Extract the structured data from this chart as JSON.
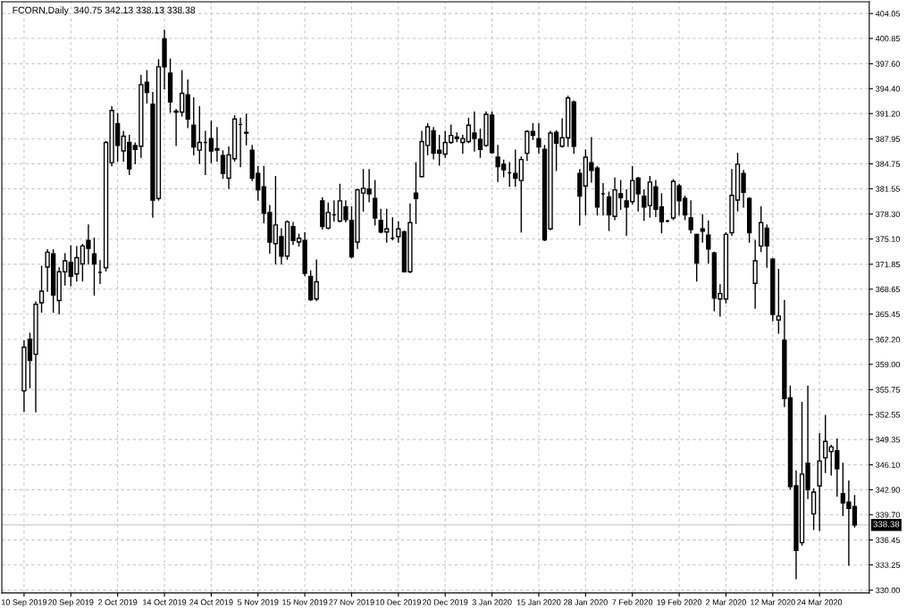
{
  "chart_data": {
    "type": "candlestick",
    "title": "FCORN,Daily  340.75 342.13 338.13 338.38",
    "categories": [
      "10 Sep 2019",
      null,
      null,
      null,
      null,
      null,
      null,
      null,
      "20 Sep 2019",
      null,
      null,
      null,
      null,
      null,
      null,
      null,
      "2 Oct 2019",
      null,
      null,
      null,
      null,
      null,
      null,
      null,
      "14 Oct 2019",
      null,
      null,
      null,
      null,
      null,
      null,
      null,
      "24 Oct 2019",
      null,
      null,
      null,
      null,
      null,
      null,
      null,
      "5 Nov 2019",
      null,
      null,
      null,
      null,
      null,
      null,
      null,
      "15 Nov 2019",
      null,
      null,
      null,
      null,
      null,
      null,
      null,
      "27 Nov 2019",
      null,
      null,
      null,
      null,
      null,
      null,
      null,
      "10 Dec 2019",
      null,
      null,
      null,
      null,
      null,
      null,
      null,
      "20 Dec 2019",
      null,
      null,
      null,
      null,
      null,
      null,
      null,
      "3 Jan 2020",
      null,
      null,
      null,
      null,
      null,
      null,
      null,
      "15 Jan 2020",
      null,
      null,
      null,
      null,
      null,
      null,
      null,
      "28 Jan 2020",
      null,
      null,
      null,
      null,
      null,
      null,
      null,
      "7 Feb 2020",
      null,
      null,
      null,
      null,
      null,
      null,
      null,
      "19 Feb 2020",
      null,
      null,
      null,
      null,
      null,
      null,
      null,
      "2 Mar 2020",
      null,
      null,
      null,
      null,
      null,
      null,
      null,
      "12 Mar 2020",
      null,
      null,
      null,
      null,
      null,
      null,
      null,
      "24 Mar 2020",
      null,
      null,
      null,
      null,
      null,
      null
    ],
    "ohlc": [
      [
        355.6,
        362.0,
        353.0,
        361.2
      ],
      [
        362.2,
        363.0,
        356.0,
        359.5
      ],
      [
        360.3,
        367.0,
        352.9,
        366.7
      ],
      [
        366.9,
        371.6,
        365.7,
        368.4
      ],
      [
        371.5,
        373.7,
        368.4,
        373.4
      ],
      [
        373.2,
        373.7,
        365.7,
        367.9
      ],
      [
        367.2,
        371.4,
        365.5,
        370.9
      ],
      [
        370.9,
        373.2,
        369.2,
        372.3
      ],
      [
        372.1,
        374.2,
        369.1,
        370.3
      ],
      [
        370.6,
        374.1,
        369.7,
        372.7
      ],
      [
        371.9,
        374.4,
        369.7,
        374.2
      ],
      [
        374.9,
        376.9,
        371.9,
        373.9
      ],
      [
        373.2,
        375.2,
        367.9,
        371.9
      ],
      [
        370.8,
        372.3,
        369.4,
        370.8
      ],
      [
        371.4,
        387.6,
        371.0,
        387.5
      ],
      [
        384.9,
        392.1,
        384.5,
        391.6
      ],
      [
        389.9,
        391.2,
        385.1,
        387.1
      ],
      [
        386.4,
        388.9,
        385.1,
        388.3
      ],
      [
        387.5,
        388.4,
        383.4,
        384.1
      ],
      [
        387.1,
        387.4,
        384.8,
        386.6
      ],
      [
        387.0,
        396.1,
        385.6,
        394.9
      ],
      [
        395.2,
        396.7,
        392.6,
        393.9
      ],
      [
        392.4,
        393.9,
        377.9,
        380.1
      ],
      [
        380.3,
        398.1,
        380.1,
        397.2
      ],
      [
        400.8,
        401.9,
        394.4,
        397.2
      ],
      [
        396.4,
        398.2,
        391.4,
        392.7
      ],
      [
        391.4,
        391.7,
        387.1,
        391.5
      ],
      [
        391.4,
        396.7,
        390.9,
        393.8
      ],
      [
        393.6,
        395.5,
        389.4,
        390.5
      ],
      [
        389.7,
        393.2,
        385.9,
        386.9
      ],
      [
        386.5,
        392.1,
        384.8,
        387.5
      ],
      [
        387.5,
        388.9,
        383.4,
        387.5
      ],
      [
        388.0,
        390.2,
        384.9,
        386.4
      ],
      [
        386.7,
        389.4,
        385.1,
        386.5
      ],
      [
        385.8,
        386.4,
        382.9,
        383.5
      ],
      [
        382.9,
        386.9,
        381.6,
        385.9
      ],
      [
        385.4,
        390.9,
        385.1,
        390.5
      ],
      [
        389.8,
        390.6,
        384.4,
        389.8
      ],
      [
        388.8,
        391.1,
        387.2,
        388.7
      ],
      [
        386.5,
        387.1,
        382.6,
        382.9
      ],
      [
        383.5,
        384.4,
        380.1,
        381.4
      ],
      [
        381.8,
        384.4,
        377.2,
        378.4
      ],
      [
        378.5,
        379.4,
        373.3,
        374.7
      ],
      [
        374.5,
        383.1,
        371.9,
        376.9
      ],
      [
        375.4,
        376.4,
        371.9,
        372.9
      ],
      [
        372.9,
        377.4,
        372.5,
        377.3
      ],
      [
        376.7,
        377.2,
        374.4,
        374.9
      ],
      [
        374.7,
        375.7,
        374.2,
        375.2
      ],
      [
        374.9,
        375.9,
        370.4,
        370.7
      ],
      [
        370.3,
        371.0,
        367.2,
        367.3
      ],
      [
        367.4,
        372.4,
        367.2,
        369.6
      ],
      [
        380.0,
        380.4,
        376.4,
        376.7
      ],
      [
        376.5,
        379.7,
        376.4,
        378.5
      ],
      [
        378.2,
        380.0,
        377.4,
        378.2
      ],
      [
        377.4,
        382.1,
        377.3,
        380.0
      ],
      [
        379.2,
        380.0,
        377.3,
        377.6
      ],
      [
        377.5,
        379.2,
        372.7,
        372.8
      ],
      [
        374.7,
        381.5,
        373.9,
        381.4
      ],
      [
        381.0,
        384.0,
        378.7,
        381.6
      ],
      [
        381.5,
        384.0,
        379.9,
        380.9
      ],
      [
        380.3,
        382.6,
        376.9,
        377.8
      ],
      [
        377.5,
        378.9,
        375.9,
        376.0
      ],
      [
        376.0,
        378.9,
        374.7,
        376.4
      ],
      [
        375.2,
        377.8,
        375.0,
        375.2
      ],
      [
        375.4,
        377.3,
        374.7,
        376.4
      ],
      [
        376.0,
        376.1,
        370.9,
        370.9
      ],
      [
        370.9,
        379.6,
        370.8,
        377.2
      ],
      [
        381.0,
        384.9,
        377.1,
        380.3
      ],
      [
        383.1,
        388.9,
        383.1,
        387.6
      ],
      [
        387.1,
        389.9,
        385.9,
        389.5
      ],
      [
        389.0,
        389.4,
        385.4,
        386.1
      ],
      [
        386.5,
        388.4,
        384.6,
        386.1
      ],
      [
        386.0,
        388.9,
        385.6,
        387.5
      ],
      [
        387.5,
        389.7,
        387.4,
        388.4
      ],
      [
        388.2,
        388.7,
        387.6,
        388.0
      ],
      [
        387.5,
        388.4,
        386.1,
        388.0
      ],
      [
        387.6,
        390.6,
        387.5,
        389.7
      ],
      [
        388.7,
        391.4,
        386.4,
        388.0
      ],
      [
        387.9,
        389.2,
        385.6,
        386.6
      ],
      [
        387.1,
        391.4,
        387.0,
        391.1
      ],
      [
        391.0,
        391.4,
        386.1,
        386.2
      ],
      [
        385.6,
        387.1,
        382.5,
        384.4
      ],
      [
        384.7,
        385.2,
        383.1,
        384.0
      ],
      [
        383.6,
        384.9,
        381.9,
        383.6
      ],
      [
        383.5,
        386.5,
        381.9,
        382.9
      ],
      [
        382.6,
        385.6,
        376.0,
        385.3
      ],
      [
        386.1,
        389.0,
        385.2,
        388.9
      ],
      [
        388.9,
        389.9,
        387.9,
        388.4
      ],
      [
        388.0,
        389.9,
        386.1,
        386.9
      ],
      [
        386.6,
        387.1,
        374.9,
        375.0
      ],
      [
        376.4,
        388.9,
        376.3,
        388.7
      ],
      [
        388.8,
        389.0,
        383.9,
        387.4
      ],
      [
        387.0,
        390.5,
        386.9,
        388.1
      ],
      [
        388.1,
        393.4,
        387.0,
        393.2
      ],
      [
        392.7,
        392.8,
        386.1,
        387.0
      ],
      [
        383.5,
        384.0,
        376.9,
        380.6
      ],
      [
        381.9,
        386.5,
        378.2,
        385.6
      ],
      [
        384.9,
        388.1,
        382.4,
        383.9
      ],
      [
        384.2,
        384.4,
        378.2,
        379.2
      ],
      [
        380.9,
        382.2,
        378.2,
        380.9
      ],
      [
        380.5,
        381.1,
        376.2,
        378.2
      ],
      [
        378.0,
        382.9,
        377.6,
        381.4
      ],
      [
        380.9,
        382.6,
        378.9,
        380.4
      ],
      [
        380.0,
        381.4,
        375.6,
        379.2
      ],
      [
        379.9,
        384.4,
        379.6,
        382.6
      ],
      [
        382.9,
        383.0,
        378.7,
        380.9
      ],
      [
        380.6,
        381.4,
        377.5,
        379.2
      ],
      [
        379.4,
        383.1,
        377.9,
        382.4
      ],
      [
        381.8,
        382.6,
        378.0,
        378.9
      ],
      [
        379.2,
        380.9,
        375.9,
        377.3
      ],
      [
        377.4,
        377.5,
        377.3,
        377.4
      ],
      [
        377.8,
        382.7,
        377.6,
        382.5
      ],
      [
        381.9,
        382.1,
        378.2,
        380.0
      ],
      [
        380.3,
        380.6,
        377.6,
        378.2
      ],
      [
        377.8,
        380.0,
        375.9,
        376.3
      ],
      [
        375.7,
        375.7,
        369.7,
        372.0
      ],
      [
        376.4,
        378.2,
        374.7,
        376.1
      ],
      [
        375.6,
        377.4,
        372.0,
        373.8
      ],
      [
        373.3,
        373.4,
        365.9,
        367.5
      ],
      [
        367.4,
        369.2,
        365.2,
        368.1
      ],
      [
        367.4,
        375.9,
        366.9,
        375.7
      ],
      [
        375.9,
        384.0,
        375.6,
        380.7
      ],
      [
        380.1,
        386.1,
        378.7,
        384.7
      ],
      [
        383.5,
        383.9,
        379.2,
        381.1
      ],
      [
        380.3,
        380.4,
        374.7,
        375.9
      ],
      [
        369.4,
        374.9,
        366.2,
        372.3
      ],
      [
        374.2,
        379.2,
        373.5,
        377.2
      ],
      [
        376.5,
        376.9,
        371.5,
        374.2
      ],
      [
        372.5,
        372.6,
        364.6,
        365.4
      ],
      [
        364.7,
        371.2,
        363.0,
        365.2
      ],
      [
        362.1,
        367.2,
        353.6,
        354.6
      ],
      [
        354.7,
        356.2,
        343.0,
        343.3
      ],
      [
        343.4,
        345.3,
        331.5,
        335.1
      ],
      [
        336.1,
        354.1,
        335.8,
        344.9
      ],
      [
        346.3,
        356.2,
        341.8,
        342.9
      ],
      [
        339.8,
        343.0,
        337.8,
        342.6
      ],
      [
        343.4,
        350.1,
        337.7,
        346.6
      ],
      [
        347.0,
        352.4,
        345.1,
        349.1
      ],
      [
        347.8,
        348.6,
        344.8,
        348.4
      ],
      [
        347.9,
        349.4,
        342.1,
        345.6
      ],
      [
        342.4,
        346.3,
        339.6,
        341.2
      ],
      [
        341.3,
        344.0,
        333.2,
        340.5
      ],
      [
        340.75,
        342.13,
        338.13,
        338.38
      ]
    ],
    "ylim": [
      329.65,
      405.55
    ],
    "yticks": [
      {
        "value": 330.0,
        "label": "330.00"
      },
      {
        "value": 333.25,
        "label": "333.25"
      },
      {
        "value": 336.45,
        "label": "336.45"
      },
      {
        "value": 339.7,
        "label": "339.70"
      },
      {
        "value": 342.9,
        "label": "342.90"
      },
      {
        "value": 346.1,
        "label": "346.10"
      },
      {
        "value": 349.35,
        "label": "349.35"
      },
      {
        "value": 352.55,
        "label": "352.55"
      },
      {
        "value": 355.75,
        "label": "355.75"
      },
      {
        "value": 359.0,
        "label": "359.00"
      },
      {
        "value": 362.2,
        "label": "362.20"
      },
      {
        "value": 365.45,
        "label": "365.45"
      },
      {
        "value": 368.65,
        "label": "368.65"
      },
      {
        "value": 371.85,
        "label": "371.85"
      },
      {
        "value": 375.1,
        "label": "375.10"
      },
      {
        "value": 378.3,
        "label": "378.30"
      },
      {
        "value": 381.55,
        "label": "381.55"
      },
      {
        "value": 384.75,
        "label": "384.75"
      },
      {
        "value": 387.95,
        "label": "387.95"
      },
      {
        "value": 391.2,
        "label": "391.20"
      },
      {
        "value": 394.4,
        "label": "394.40"
      },
      {
        "value": 397.6,
        "label": "397.60"
      },
      {
        "value": 400.85,
        "label": "400.85"
      },
      {
        "value": 404.05,
        "label": "404.05"
      }
    ],
    "ref_lines": [
      {
        "axis": "y",
        "value": 338.38,
        "label": "338.38",
        "color": "#c0c0c0"
      }
    ],
    "grid": true
  }
}
